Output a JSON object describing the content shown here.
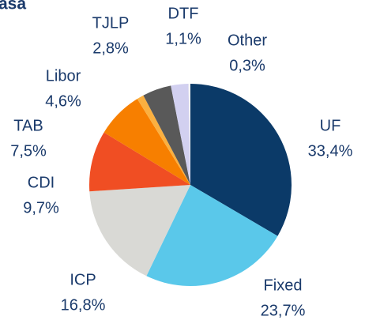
{
  "chart_data": {
    "type": "pie",
    "title": "asa",
    "categories": [
      "UF",
      "Fixed",
      "ICP",
      "CDI",
      "TAB",
      "DTF",
      "Libor",
      "TJLP",
      "Other"
    ],
    "values": [
      33.4,
      23.7,
      16.8,
      9.7,
      7.5,
      1.1,
      4.6,
      2.8,
      0.3
    ],
    "value_labels": [
      "33,4%",
      "23,7%",
      "16,8%",
      "9,7%",
      "7,5%",
      "1,1%",
      "4,6%",
      "2,8%",
      "0,3%"
    ],
    "colors": [
      "#0b3a68",
      "#5ac8ea",
      "#d9d9d5",
      "#f04e23",
      "#f77f00",
      "#fbb040",
      "#595959",
      "#d2d0f0",
      "#f4f4f4"
    ]
  }
}
